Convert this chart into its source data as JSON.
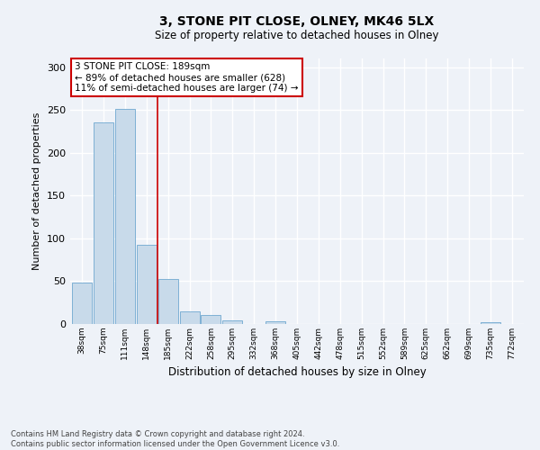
{
  "title": "3, STONE PIT CLOSE, OLNEY, MK46 5LX",
  "subtitle": "Size of property relative to detached houses in Olney",
  "xlabel": "Distribution of detached houses by size in Olney",
  "ylabel": "Number of detached properties",
  "bin_labels": [
    "38sqm",
    "75sqm",
    "111sqm",
    "148sqm",
    "185sqm",
    "222sqm",
    "258sqm",
    "295sqm",
    "332sqm",
    "368sqm",
    "405sqm",
    "442sqm",
    "478sqm",
    "515sqm",
    "552sqm",
    "589sqm",
    "625sqm",
    "662sqm",
    "699sqm",
    "735sqm",
    "772sqm"
  ],
  "bar_values": [
    48,
    235,
    251,
    93,
    53,
    15,
    10,
    4,
    0,
    3,
    0,
    0,
    0,
    0,
    0,
    0,
    0,
    0,
    0,
    2,
    0
  ],
  "bar_color": "#c8daea",
  "bar_edge_color": "#6fa8d0",
  "property_line_color": "#cc0000",
  "annotation_text": "3 STONE PIT CLOSE: 189sqm\n← 89% of detached houses are smaller (628)\n11% of semi-detached houses are larger (74) →",
  "annotation_box_color": "#ffffff",
  "annotation_box_edge": "#cc0000",
  "ylim": [
    0,
    310
  ],
  "yticks": [
    0,
    50,
    100,
    150,
    200,
    250,
    300
  ],
  "footnote": "Contains HM Land Registry data © Crown copyright and database right 2024.\nContains public sector information licensed under the Open Government Licence v3.0.",
  "bg_color": "#eef2f8",
  "grid_color": "#ffffff"
}
